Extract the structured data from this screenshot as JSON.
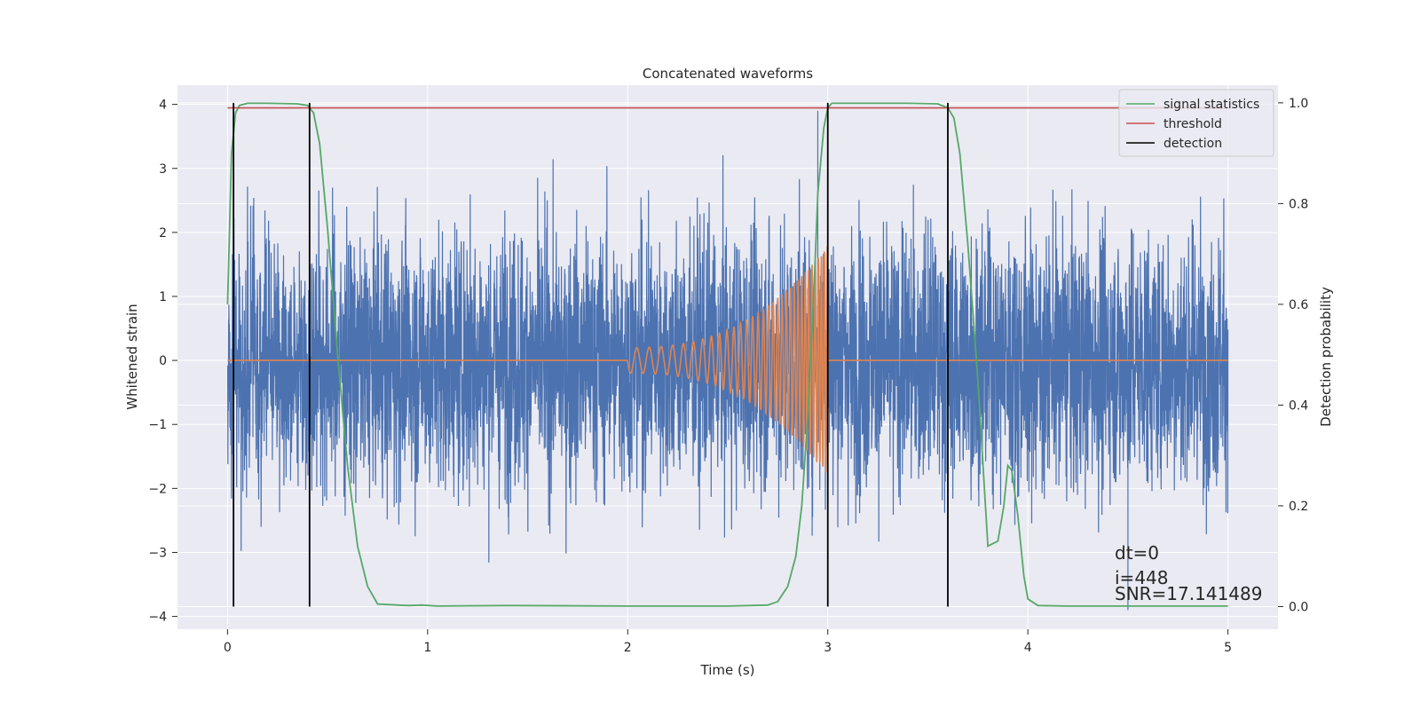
{
  "chart_data": {
    "type": "line",
    "title": "Concatenated waveforms",
    "xlabel": "Time (s)",
    "ylabel": "Whitened strain",
    "y2label": "Detection probability",
    "xlim": [
      -0.25,
      5.25
    ],
    "ylim": [
      -4.2,
      4.3
    ],
    "y2lim": [
      -0.045,
      1.035
    ],
    "xticks": [
      0,
      1,
      2,
      3,
      4,
      5
    ],
    "yticks": [
      -4,
      -3,
      -2,
      -1,
      0,
      1,
      2,
      3,
      4
    ],
    "y2ticks": [
      0.0,
      0.2,
      0.4,
      0.6,
      0.8,
      1.0
    ],
    "xtick_labels": [
      "0",
      "1",
      "2",
      "3",
      "4",
      "5"
    ],
    "ytick_labels": [
      "−4",
      "−3",
      "−2",
      "−1",
      "0",
      "1",
      "2",
      "3",
      "4"
    ],
    "y2tick_labels": [
      "0.0",
      "0.2",
      "0.4",
      "0.6",
      "0.8",
      "1.0"
    ],
    "grid": true,
    "legend_position": "top-right",
    "colors": {
      "strain": "#4c72b0",
      "template": "#dd8452",
      "signal_statistics": "#55a868",
      "threshold": "#c44e52",
      "detection": "#000000",
      "axes_background": "#eaeaf2",
      "grid": "#ffffff"
    },
    "series": [
      {
        "name": "signal statistics",
        "axis": "right",
        "x": [
          0.0,
          0.02,
          0.04,
          0.06,
          0.1,
          0.2,
          0.35,
          0.4,
          0.43,
          0.46,
          0.5,
          0.55,
          0.6,
          0.65,
          0.7,
          0.75,
          0.9,
          0.97,
          1.05,
          1.4,
          2.0,
          2.5,
          2.7,
          2.75,
          2.8,
          2.84,
          2.87,
          2.9,
          2.93,
          2.95,
          2.98,
          3.0,
          3.02,
          3.05,
          3.1,
          3.4,
          3.55,
          3.6,
          3.63,
          3.66,
          3.7,
          3.75,
          3.8,
          3.85,
          3.88,
          3.9,
          3.92,
          3.95,
          3.98,
          4.0,
          4.05,
          4.2,
          5.0
        ],
        "y": [
          0.6,
          0.9,
          0.98,
          0.995,
          0.999,
          0.999,
          0.998,
          0.995,
          0.98,
          0.92,
          0.75,
          0.5,
          0.28,
          0.12,
          0.04,
          0.005,
          0.002,
          0.003,
          0.001,
          0.002,
          0.001,
          0.001,
          0.003,
          0.01,
          0.04,
          0.1,
          0.2,
          0.38,
          0.62,
          0.82,
          0.95,
          0.99,
          0.999,
          0.999,
          0.999,
          0.999,
          0.998,
          0.99,
          0.97,
          0.9,
          0.72,
          0.45,
          0.12,
          0.13,
          0.2,
          0.28,
          0.27,
          0.18,
          0.06,
          0.015,
          0.002,
          0.001,
          0.001
        ]
      },
      {
        "name": "threshold",
        "axis": "right",
        "x": [
          0.0,
          5.0
        ],
        "y": [
          0.99,
          0.99
        ]
      },
      {
        "name": "detection",
        "axis": "right",
        "type": "vlines",
        "x": [
          0.03,
          0.41,
          3.0,
          3.6
        ],
        "ymin": 0.0,
        "ymax": 1.0
      }
    ],
    "strain": {
      "axis": "left",
      "x_range": [
        0,
        5
      ],
      "amplitude_std": 1.0,
      "description_peaks": {
        "x": [
          2.95,
          3.0,
          4.5
        ],
        "y": [
          3.9,
          3.9,
          -3.9
        ]
      }
    },
    "template_waveform": {
      "axis": "left",
      "start": 2.0,
      "end": 3.0,
      "f_start": 16,
      "f_end": 70,
      "amp_start": 0.2,
      "amp_end": 1.8
    },
    "annotations": [
      "dt=0",
      "i=448",
      "SNR=17.141489"
    ]
  }
}
